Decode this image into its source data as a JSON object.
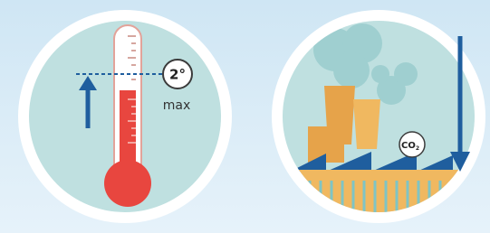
{
  "thermometer": {
    "badge": "2°",
    "label": "max"
  },
  "factory": {
    "badge": "CO",
    "badge_subscript": "2"
  }
}
